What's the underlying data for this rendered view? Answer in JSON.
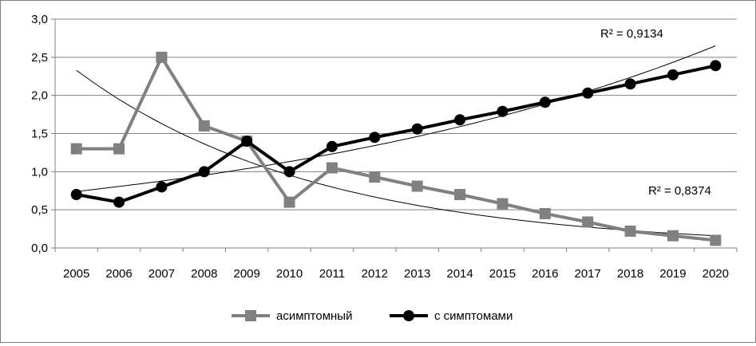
{
  "chart_data": {
    "type": "line",
    "categories": [
      "2005",
      "2006",
      "2007",
      "2008",
      "2009",
      "2010",
      "2011",
      "2012",
      "2013",
      "2014",
      "2015",
      "2016",
      "2017",
      "2018",
      "2019",
      "2020"
    ],
    "y_ticks": [
      "0,0",
      "0,5",
      "1,0",
      "1,5",
      "2,0",
      "2,5",
      "3,0"
    ],
    "ylim": [
      0,
      3
    ],
    "grid": true,
    "legend_position": "bottom",
    "series": [
      {
        "name": "асимптомный",
        "color": "#808080",
        "marker": "square",
        "values": [
          1.3,
          1.3,
          2.5,
          1.6,
          1.4,
          0.6,
          1.05,
          0.93,
          0.81,
          0.7,
          0.58,
          0.45,
          0.34,
          0.22,
          0.16,
          0.1
        ]
      },
      {
        "name": "с симптомами",
        "color": "#000000",
        "marker": "circle",
        "values": [
          0.7,
          0.6,
          0.8,
          1.0,
          1.4,
          1.0,
          1.33,
          1.45,
          1.56,
          1.68,
          1.79,
          1.91,
          2.03,
          2.15,
          2.27,
          2.39
        ]
      }
    ],
    "trendlines": [
      {
        "type": "exponential",
        "start": 0.74,
        "end": 2.65,
        "label": "R² = 0,9134"
      },
      {
        "type": "exponential",
        "start": 2.33,
        "end": 0.16,
        "label": "R² = 0,8374"
      }
    ]
  }
}
